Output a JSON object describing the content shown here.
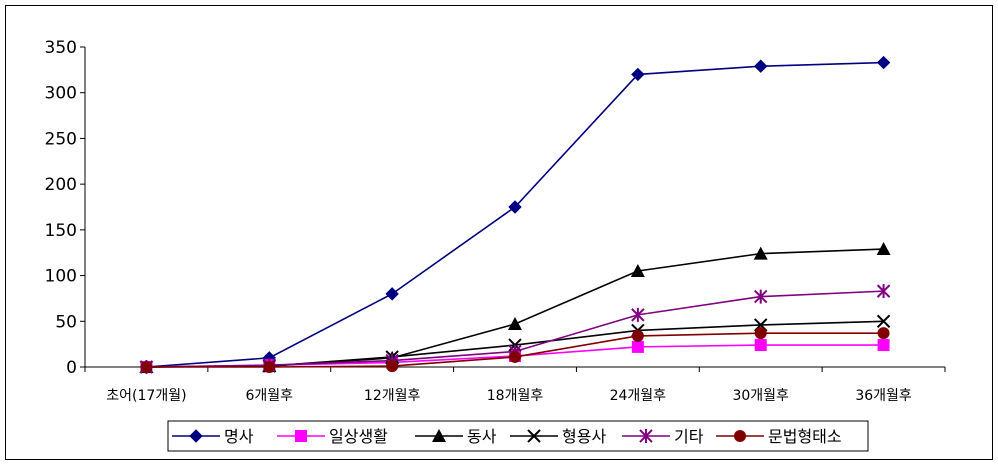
{
  "chart_data": {
    "type": "line",
    "categories": [
      "초어(17개월)",
      "6개월후",
      "12개월후",
      "18개월후",
      "24개월후",
      "30개월후",
      "36개월후"
    ],
    "ylim": [
      0,
      350
    ],
    "yticks": [
      0,
      50,
      100,
      150,
      200,
      250,
      300,
      350
    ],
    "grid": false,
    "legend_position": "bottom",
    "series": [
      {
        "name": "명사",
        "color": "#000080",
        "marker": "diamond",
        "values": [
          0,
          10,
          80,
          175,
          320,
          329,
          333
        ]
      },
      {
        "name": "일상생활",
        "color": "#ff00ff",
        "marker": "square",
        "values": [
          0,
          2,
          5,
          12,
          22,
          24,
          24
        ]
      },
      {
        "name": "동사",
        "color": "#000000",
        "marker": "triangle",
        "values": [
          0,
          1,
          10,
          47,
          105,
          124,
          129
        ]
      },
      {
        "name": "형용사",
        "color": "#000000",
        "marker": "x",
        "values": [
          0,
          1,
          11,
          24,
          40,
          46,
          50
        ]
      },
      {
        "name": "기타",
        "color": "#800080",
        "marker": "star",
        "values": [
          0,
          2,
          7,
          17,
          57,
          77,
          83
        ]
      },
      {
        "name": "문법형태소",
        "color": "#800000",
        "marker": "circle",
        "values": [
          0,
          0,
          1,
          11,
          34,
          37,
          37
        ]
      }
    ]
  }
}
